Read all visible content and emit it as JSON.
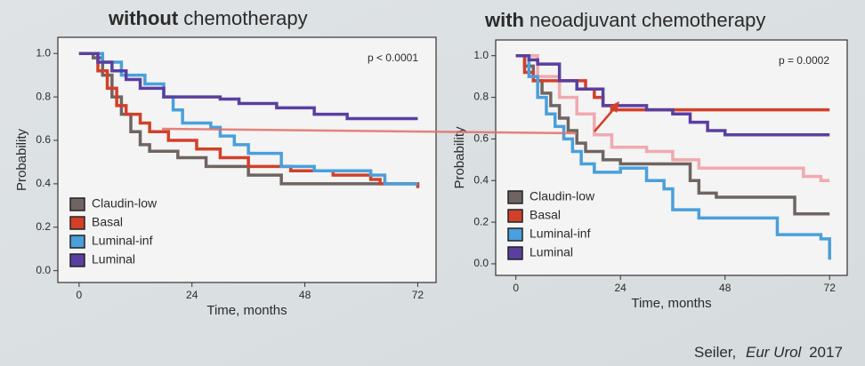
{
  "chart_data": [
    {
      "type": "line",
      "drawstyle": "steps-post",
      "title_parts": [
        "without",
        "chemotherapy"
      ],
      "xlabel": "Time, months",
      "ylabel": "Probability",
      "annotation": "p < 0.0001",
      "xlim": [
        -3,
        74
      ],
      "ylim": [
        -0.03,
        1.05
      ],
      "xticks": [
        0,
        24,
        48,
        72
      ],
      "yticks": [
        {
          "value": 0,
          "label": "0.0"
        },
        0.2,
        0.4,
        0.6,
        0.8,
        {
          "value": 1,
          "label": "1.0"
        }
      ],
      "legend": "lower left",
      "series": [
        {
          "name": "Claudin-low",
          "color": "#6f6461",
          "x": [
            0,
            3,
            5,
            7,
            9,
            11,
            13,
            15,
            21,
            27,
            36,
            43,
            55,
            72
          ],
          "values": [
            1.0,
            0.98,
            0.9,
            0.8,
            0.72,
            0.64,
            0.58,
            0.55,
            0.52,
            0.48,
            0.44,
            0.4,
            0.4,
            0.39
          ]
        },
        {
          "name": "Basal",
          "color": "#d2402a",
          "x": [
            0,
            4,
            6,
            8,
            10,
            13,
            15,
            19,
            25,
            30,
            36,
            45,
            54,
            62,
            64,
            72
          ],
          "values": [
            1.0,
            0.92,
            0.84,
            0.76,
            0.72,
            0.68,
            0.64,
            0.6,
            0.56,
            0.52,
            0.48,
            0.46,
            0.44,
            0.42,
            0.4,
            0.38
          ]
        },
        {
          "name": "Luminal-inf",
          "color": "#4a9fdc",
          "x": [
            0,
            5,
            9,
            14,
            18,
            20,
            22,
            28,
            30,
            33,
            36,
            43,
            50,
            62,
            65,
            72
          ],
          "values": [
            1.0,
            0.96,
            0.9,
            0.86,
            0.8,
            0.74,
            0.68,
            0.66,
            0.62,
            0.58,
            0.54,
            0.48,
            0.46,
            0.44,
            0.4,
            0.4
          ]
        },
        {
          "name": "Luminal",
          "color": "#5a3fa0",
          "x": [
            0,
            4,
            7,
            10,
            13,
            18,
            30,
            34,
            42,
            50,
            57,
            72
          ],
          "values": [
            1.0,
            0.96,
            0.92,
            0.88,
            0.84,
            0.8,
            0.79,
            0.77,
            0.75,
            0.72,
            0.7,
            0.7
          ]
        }
      ]
    },
    {
      "type": "line",
      "drawstyle": "steps-post",
      "title_parts": [
        "with",
        "neoadjuvant chemotherapy"
      ],
      "xlabel": "Time, months",
      "ylabel": "Probability",
      "annotation": "p = 0.0002",
      "xlim": [
        -3,
        74
      ],
      "ylim": [
        -0.03,
        1.05
      ],
      "xticks": [
        0,
        24,
        48,
        72
      ],
      "yticks": [
        {
          "value": 0,
          "label": "0.0"
        },
        0.2,
        0.4,
        0.6,
        0.8,
        {
          "value": 1,
          "label": "1.0"
        }
      ],
      "legend": "lower left",
      "series": [
        {
          "color": "#f0a9b0",
          "x": [
            0,
            5,
            10,
            14,
            18,
            22,
            30,
            36,
            42,
            52,
            66,
            70,
            72
          ],
          "values": [
            1.0,
            0.9,
            0.8,
            0.72,
            0.62,
            0.56,
            0.54,
            0.5,
            0.46,
            0.46,
            0.42,
            0.4,
            0.4
          ]
        },
        {
          "name": "Claudin-low",
          "color": "#6f6461",
          "x": [
            0,
            2,
            4,
            6,
            8,
            10,
            12,
            14,
            16,
            20,
            24,
            38,
            40,
            42,
            46,
            62,
            64,
            72
          ],
          "values": [
            1.0,
            0.95,
            0.88,
            0.82,
            0.76,
            0.7,
            0.64,
            0.58,
            0.54,
            0.5,
            0.48,
            0.48,
            0.4,
            0.34,
            0.32,
            0.32,
            0.24,
            0.24
          ]
        },
        {
          "name": "Basal",
          "color": "#d2402a",
          "x": [
            0,
            2,
            4,
            16,
            18,
            20,
            22,
            72
          ],
          "values": [
            1.0,
            0.92,
            0.88,
            0.84,
            0.8,
            0.76,
            0.74,
            0.74
          ]
        },
        {
          "name": "Luminal-inf",
          "color": "#4a9fdc",
          "x": [
            0,
            3,
            5,
            7,
            9,
            11,
            13,
            15,
            18,
            24,
            30,
            34,
            36,
            42,
            58,
            60,
            62,
            70,
            72
          ],
          "values": [
            1.0,
            0.9,
            0.8,
            0.72,
            0.66,
            0.6,
            0.54,
            0.48,
            0.44,
            0.46,
            0.4,
            0.36,
            0.26,
            0.22,
            0.22,
            0.14,
            0.14,
            0.12,
            0.02
          ]
        },
        {
          "name": "Luminal",
          "color": "#5a3fa0",
          "x": [
            0,
            3,
            5,
            10,
            14,
            20,
            30,
            36,
            40,
            44,
            48,
            72
          ],
          "values": [
            1.0,
            0.98,
            0.96,
            0.88,
            0.84,
            0.76,
            0.74,
            0.72,
            0.68,
            0.64,
            0.62,
            0.62
          ]
        }
      ]
    }
  ],
  "source": [
    "Seiler,",
    "Eur Urol",
    "2017"
  ]
}
